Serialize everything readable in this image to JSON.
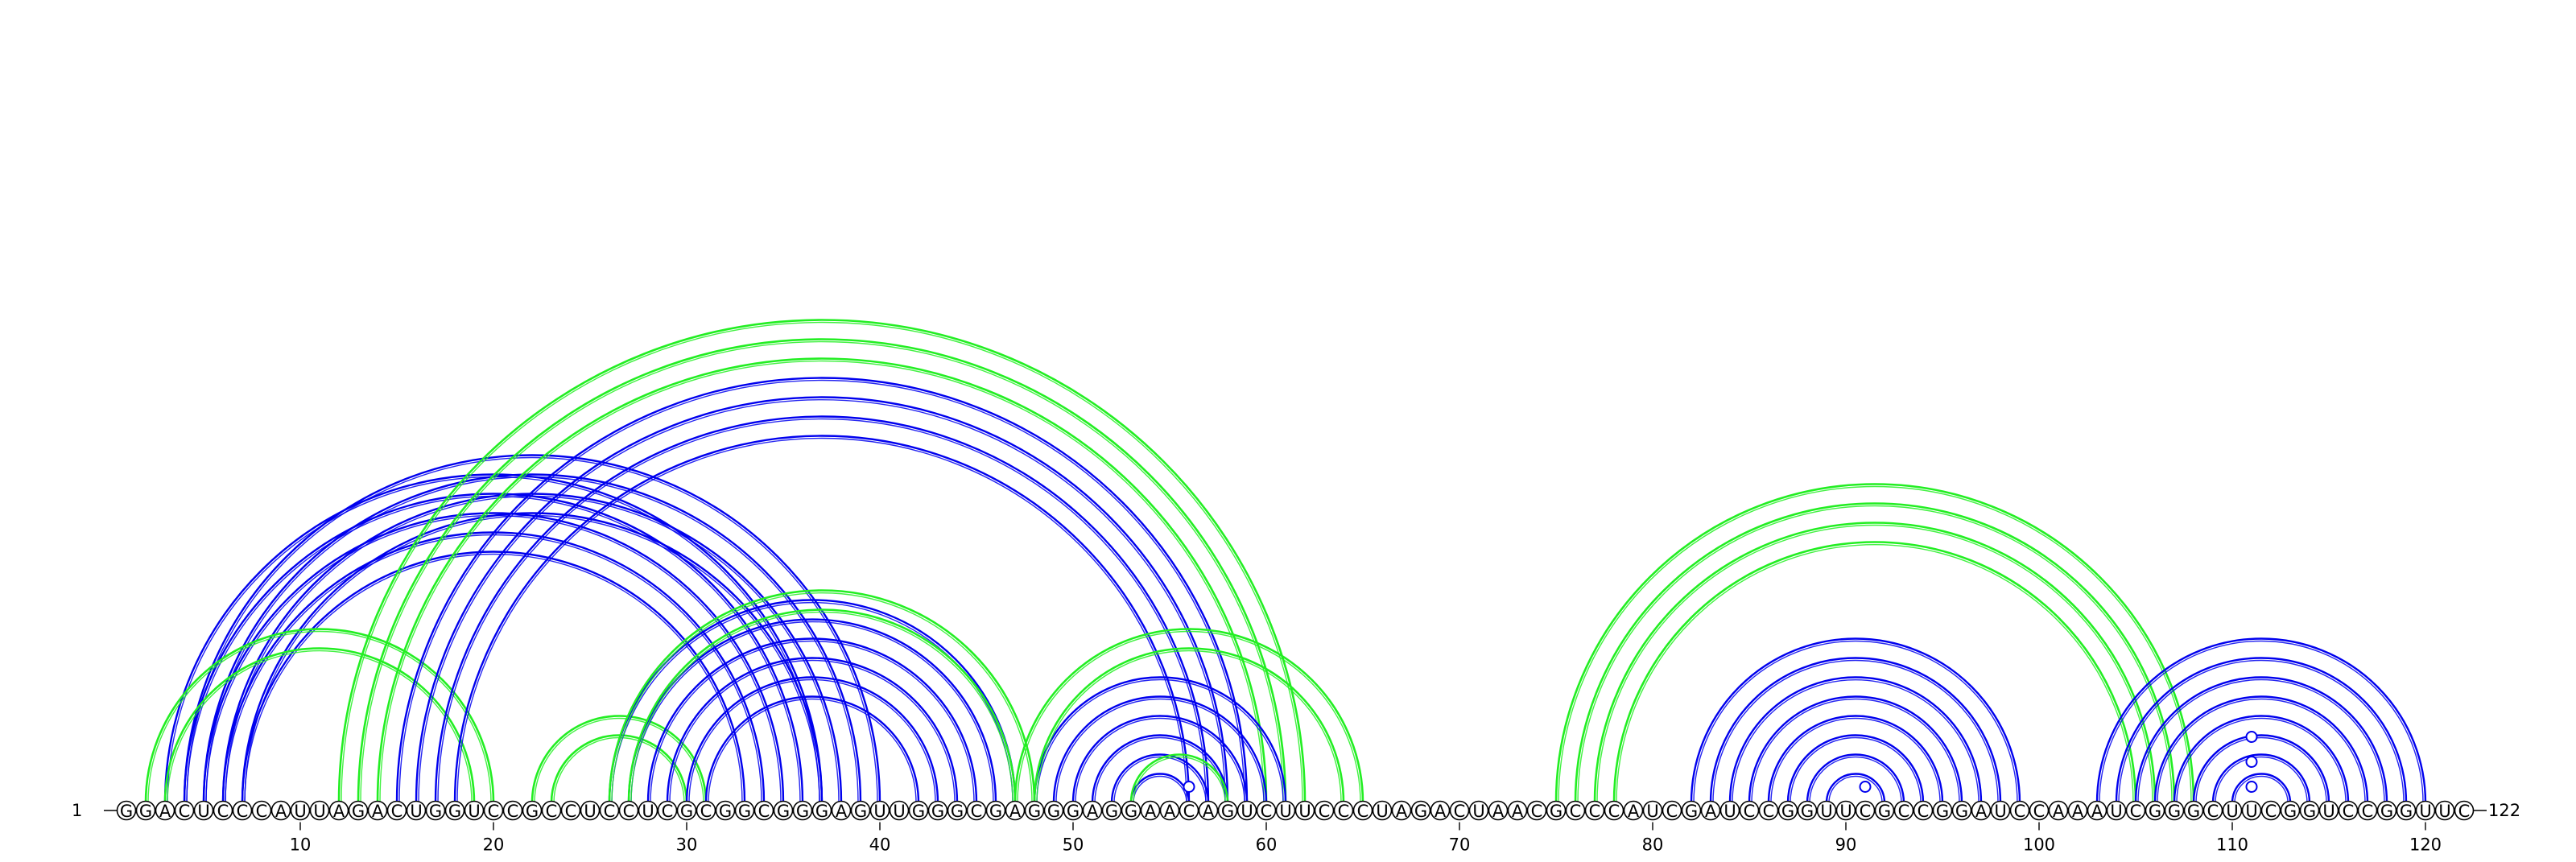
{
  "sequence": "GGACUCCCAUUAGACUGGUCCGCCUCCUCGCGGCGGGAGUUGGGCGAGGGAGGAACAGUCUUCCCUAGACUAACGCCCAUCGAUCCGGUUCGCCGGAUCCAAAUCGGGCUUCGGUCCGGUUC",
  "start_label": "1",
  "end_label": "122",
  "tick_labels": [
    "10",
    "20",
    "30",
    "40",
    "50",
    "60",
    "70",
    "80",
    "90",
    "100",
    "110",
    "120"
  ],
  "colors": {
    "pair_blue": "#0000ee",
    "pair_green": "#22ee22",
    "backbone": "#000000"
  },
  "arc_groups_upper": [
    {
      "color": "blue",
      "pairs": [
        [
          3,
          37
        ],
        [
          4,
          36
        ],
        [
          5,
          35
        ],
        [
          6,
          34
        ],
        [
          7,
          33
        ]
      ]
    },
    {
      "color": "blue",
      "pairs": [
        [
          4,
          40
        ],
        [
          5,
          39
        ],
        [
          6,
          38
        ],
        [
          7,
          37
        ]
      ]
    },
    {
      "color": "green",
      "pairs": [
        [
          2,
          20
        ],
        [
          3,
          19
        ]
      ]
    },
    {
      "color": "green",
      "pairs": [
        [
          12,
          62
        ],
        [
          13,
          61
        ],
        [
          14,
          60
        ]
      ]
    },
    {
      "color": "blue",
      "pairs": [
        [
          15,
          59
        ],
        [
          16,
          58
        ],
        [
          17,
          57
        ],
        [
          18,
          56
        ]
      ]
    },
    {
      "color": "green",
      "pairs": [
        [
          22,
          31
        ],
        [
          23,
          30
        ]
      ]
    },
    {
      "color": "blue",
      "pairs": [
        [
          26,
          47
        ],
        [
          27,
          46
        ],
        [
          28,
          45
        ],
        [
          29,
          44
        ],
        [
          30,
          43
        ],
        [
          31,
          42
        ]
      ]
    },
    {
      "color": "green",
      "pairs": [
        [
          26,
          48
        ],
        [
          27,
          47
        ]
      ]
    },
    {
      "color": "blue",
      "pairs": [
        [
          48,
          61
        ],
        [
          49,
          60
        ],
        [
          50,
          59
        ],
        [
          51,
          58
        ],
        [
          52,
          57
        ],
        [
          53,
          56
        ]
      ]
    },
    {
      "color": "green",
      "pairs": [
        [
          47,
          65
        ],
        [
          48,
          64
        ]
      ]
    },
    {
      "color": "green",
      "pairs": [
        [
          53,
          58
        ]
      ]
    },
    {
      "color": "green",
      "pairs": [
        [
          75,
          108
        ],
        [
          76,
          107
        ],
        [
          77,
          106
        ],
        [
          78,
          105
        ]
      ]
    },
    {
      "color": "blue",
      "pairs": [
        [
          82,
          99
        ],
        [
          83,
          98
        ],
        [
          84,
          97
        ],
        [
          85,
          96
        ],
        [
          86,
          95
        ],
        [
          87,
          94
        ],
        [
          88,
          93
        ],
        [
          89,
          92
        ]
      ]
    },
    {
      "color": "blue",
      "pairs": [
        [
          103,
          120
        ],
        [
          104,
          119
        ],
        [
          105,
          118
        ],
        [
          106,
          117
        ],
        [
          107,
          116
        ],
        [
          108,
          115
        ],
        [
          109,
          114
        ],
        [
          110,
          113
        ]
      ]
    }
  ],
  "loop_markers": [
    {
      "index": 56,
      "level": 1
    },
    {
      "index": 91,
      "level": 1
    },
    {
      "index": 111,
      "level": 1
    },
    {
      "index": 111,
      "level": 2
    },
    {
      "index": 111,
      "level": 3
    }
  ]
}
